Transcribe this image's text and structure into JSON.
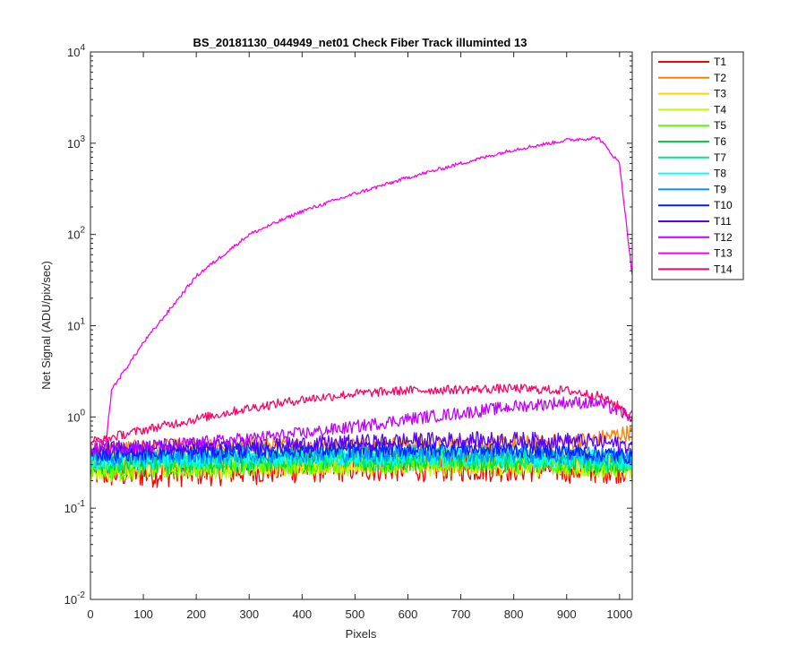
{
  "chart_data": {
    "type": "line",
    "title": "BS_20181130_044949_net01   Check Fiber     Track illuminted 13",
    "xlabel": "Pixels",
    "ylabel": "Net Signal (ADU/pix/sec)",
    "xlim": [
      0,
      1024
    ],
    "ylim": [
      0.01,
      10000
    ],
    "yscale": "log",
    "grid": false,
    "legend_position": "outside-top-right",
    "x_ticks": [
      "0",
      "100",
      "200",
      "300",
      "400",
      "500",
      "600",
      "700",
      "800",
      "900",
      "1000"
    ],
    "x_tick_values": [
      0,
      100,
      200,
      300,
      400,
      500,
      600,
      700,
      800,
      900,
      1000
    ],
    "y_ticks": [
      {
        "base": "10",
        "exp": "-2",
        "value": 0.01
      },
      {
        "base": "10",
        "exp": "-1",
        "value": 0.1
      },
      {
        "base": "10",
        "exp": "0",
        "value": 1
      },
      {
        "base": "10",
        "exp": "1",
        "value": 10
      },
      {
        "base": "10",
        "exp": "2",
        "value": 100
      },
      {
        "base": "10",
        "exp": "3",
        "value": 1000
      },
      {
        "base": "10",
        "exp": "4",
        "value": 10000
      }
    ],
    "x": [
      0,
      30,
      40,
      100,
      200,
      300,
      400,
      500,
      600,
      700,
      800,
      900,
      960,
      1000,
      1024
    ],
    "series": [
      {
        "name": "T1",
        "color": "#ff0000",
        "noise": 0.16,
        "values": [
          0.25,
          0.24,
          0.24,
          0.24,
          0.25,
          0.26,
          0.27,
          0.28,
          0.28,
          0.28,
          0.28,
          0.27,
          0.27,
          0.27,
          0.27
        ]
      },
      {
        "name": "T2",
        "color": "#ff7f00",
        "noise": 0.09,
        "values": [
          0.45,
          0.45,
          0.45,
          0.46,
          0.47,
          0.48,
          0.49,
          0.5,
          0.5,
          0.5,
          0.51,
          0.53,
          0.58,
          0.65,
          0.68
        ]
      },
      {
        "name": "T3",
        "color": "#ffd700",
        "noise": 0.13,
        "values": [
          0.3,
          0.3,
          0.3,
          0.3,
          0.31,
          0.32,
          0.32,
          0.33,
          0.33,
          0.33,
          0.33,
          0.32,
          0.31,
          0.3,
          0.3
        ]
      },
      {
        "name": "T4",
        "color": "#bfff00",
        "noise": 0.13,
        "values": [
          0.26,
          0.26,
          0.26,
          0.27,
          0.28,
          0.29,
          0.3,
          0.3,
          0.3,
          0.3,
          0.3,
          0.29,
          0.28,
          0.28,
          0.28
        ]
      },
      {
        "name": "T5",
        "color": "#55ff00",
        "noise": 0.12,
        "values": [
          0.27,
          0.27,
          0.27,
          0.28,
          0.29,
          0.3,
          0.31,
          0.31,
          0.31,
          0.31,
          0.31,
          0.3,
          0.29,
          0.29,
          0.29
        ]
      },
      {
        "name": "T6",
        "color": "#00d43a",
        "noise": 0.12,
        "values": [
          0.3,
          0.3,
          0.3,
          0.31,
          0.32,
          0.33,
          0.34,
          0.34,
          0.34,
          0.34,
          0.33,
          0.33,
          0.32,
          0.32,
          0.32
        ]
      },
      {
        "name": "T7",
        "color": "#00e6a0",
        "noise": 0.11,
        "values": [
          0.32,
          0.32,
          0.32,
          0.33,
          0.34,
          0.35,
          0.36,
          0.36,
          0.36,
          0.36,
          0.35,
          0.34,
          0.34,
          0.33,
          0.33
        ]
      },
      {
        "name": "T8",
        "color": "#00ffff",
        "noise": 0.11,
        "values": [
          0.33,
          0.33,
          0.33,
          0.34,
          0.35,
          0.36,
          0.37,
          0.37,
          0.37,
          0.37,
          0.36,
          0.35,
          0.35,
          0.34,
          0.34
        ]
      },
      {
        "name": "T9",
        "color": "#0090ff",
        "noise": 0.1,
        "values": [
          0.36,
          0.36,
          0.36,
          0.37,
          0.38,
          0.39,
          0.4,
          0.4,
          0.4,
          0.4,
          0.39,
          0.38,
          0.37,
          0.37,
          0.37
        ]
      },
      {
        "name": "T10",
        "color": "#0020ff",
        "noise": 0.09,
        "values": [
          0.4,
          0.4,
          0.4,
          0.41,
          0.42,
          0.43,
          0.44,
          0.44,
          0.45,
          0.45,
          0.44,
          0.42,
          0.4,
          0.38,
          0.37
        ]
      },
      {
        "name": "T11",
        "color": "#5a00ff",
        "noise": 0.09,
        "values": [
          0.45,
          0.45,
          0.45,
          0.46,
          0.47,
          0.48,
          0.5,
          0.52,
          0.55,
          0.56,
          0.56,
          0.55,
          0.53,
          0.5,
          0.48
        ]
      },
      {
        "name": "T12",
        "color": "#bf00ff",
        "noise": 0.07,
        "values": [
          0.45,
          0.45,
          0.46,
          0.48,
          0.52,
          0.58,
          0.66,
          0.78,
          0.95,
          1.1,
          1.3,
          1.45,
          1.42,
          1.15,
          1.0
        ]
      },
      {
        "name": "T13",
        "color": "#ff00e6",
        "noise": 0.02,
        "values": [
          0.52,
          0.55,
          2.0,
          6.5,
          35,
          100,
          180,
          280,
          420,
          600,
          850,
          1080,
          1150,
          600,
          35
        ]
      },
      {
        "name": "T14",
        "color": "#ff0066",
        "noise": 0.05,
        "values": [
          0.55,
          0.56,
          0.6,
          0.72,
          0.95,
          1.25,
          1.55,
          1.8,
          1.95,
          2.0,
          2.05,
          1.95,
          1.7,
          1.3,
          0.95
        ]
      }
    ]
  }
}
